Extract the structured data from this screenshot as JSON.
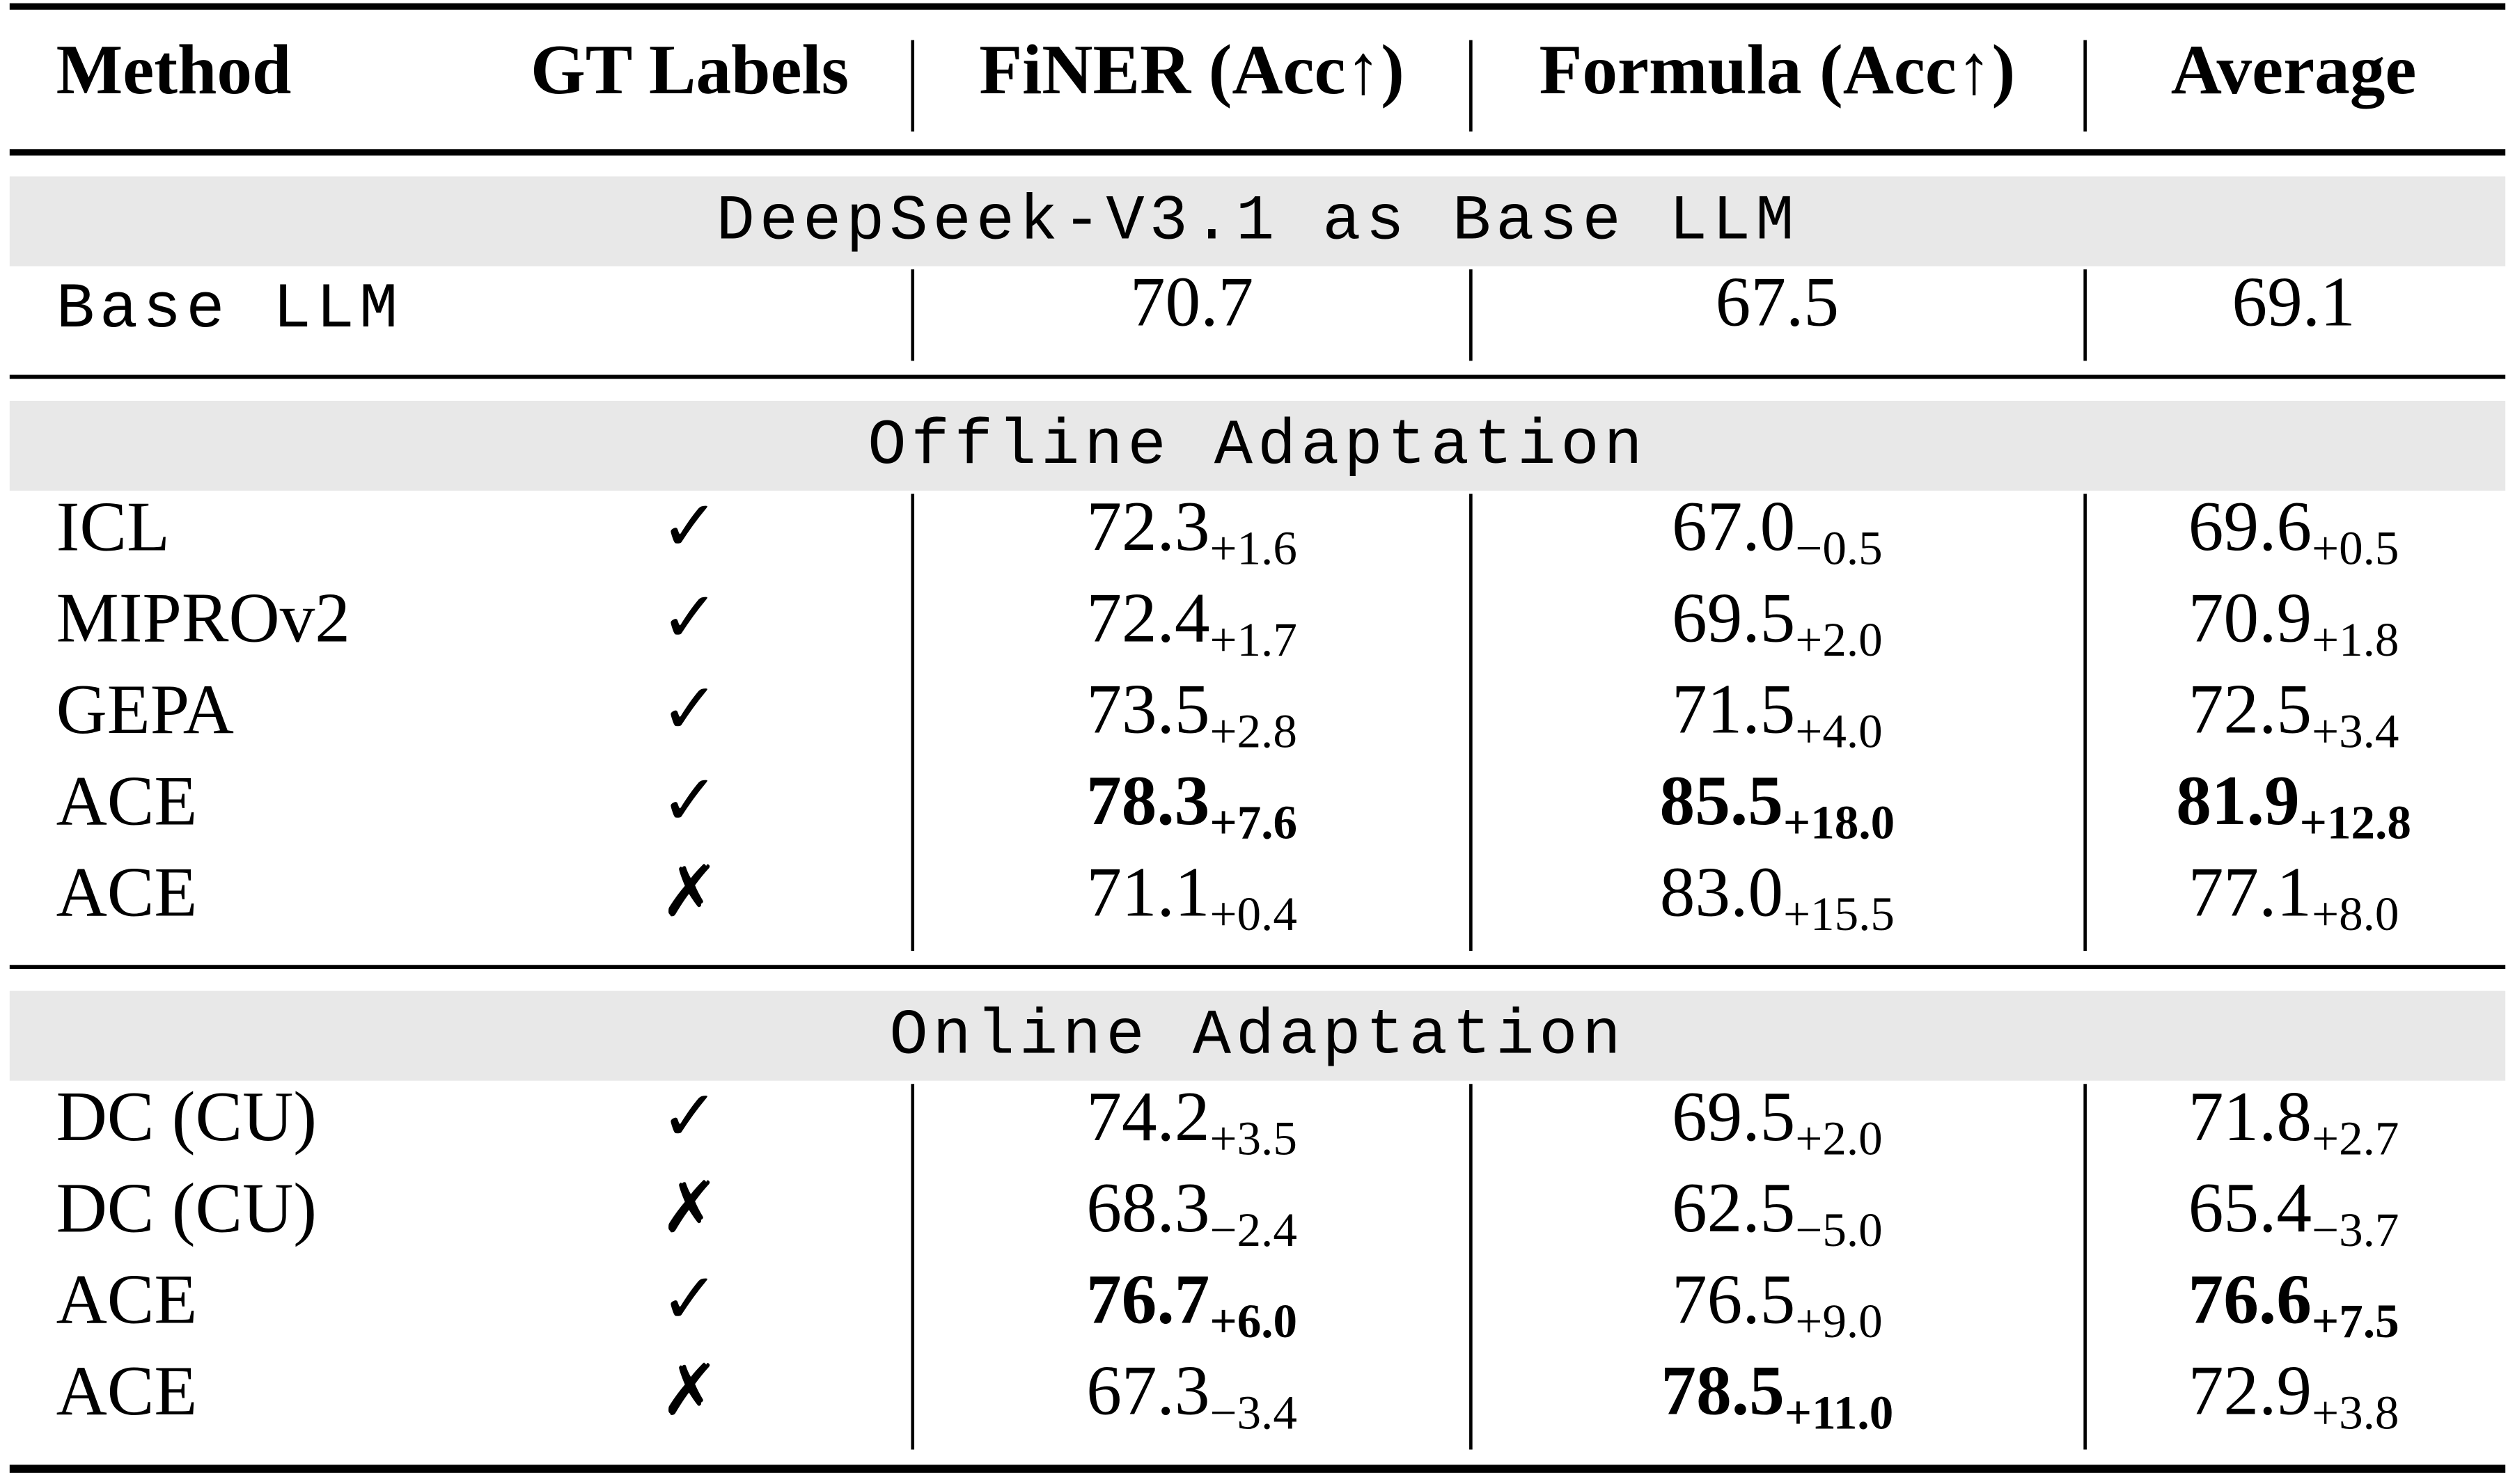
{
  "header": [
    "Method",
    "GT Labels",
    "FiNER (Acc↑)",
    "Formula (Acc↑)",
    "Average"
  ],
  "sections": [
    {
      "title": "DeepSeek-V3.1 as Base LLM",
      "rows": [
        {
          "method": "Base LLM",
          "monospace": true,
          "cells": [
            {
              "value": "70.7",
              "bold": false
            },
            {
              "value": "67.5",
              "bold": false
            },
            {
              "value": "69.1",
              "bold": false
            }
          ]
        }
      ]
    },
    {
      "title": "Offline Adaptation",
      "rows": [
        {
          "method": "ICL",
          "gt": "✓",
          "cells": [
            {
              "value": "72.3",
              "delta": "+1.6",
              "bold": false
            },
            {
              "value": "67.0",
              "delta": "−0.5",
              "bold": false
            },
            {
              "value": "69.6",
              "delta": "+0.5",
              "bold": false
            }
          ]
        },
        {
          "method": "MIPROv2",
          "gt": "✓",
          "cells": [
            {
              "value": "72.4",
              "delta": "+1.7",
              "bold": false
            },
            {
              "value": "69.5",
              "delta": "+2.0",
              "bold": false
            },
            {
              "value": "70.9",
              "delta": "+1.8",
              "bold": false
            }
          ]
        },
        {
          "method": "GEPA",
          "gt": "✓",
          "cells": [
            {
              "value": "73.5",
              "delta": "+2.8",
              "bold": false
            },
            {
              "value": "71.5",
              "delta": "+4.0",
              "bold": false
            },
            {
              "value": "72.5",
              "delta": "+3.4",
              "bold": false
            }
          ]
        },
        {
          "method": "ACE",
          "gt": "✓",
          "cells": [
            {
              "value": "78.3",
              "delta": "+7.6",
              "bold": true
            },
            {
              "value": "85.5",
              "delta": "+18.0",
              "bold": true
            },
            {
              "value": "81.9",
              "delta": "+12.8",
              "bold": true
            }
          ]
        },
        {
          "method": "ACE",
          "gt": "✗",
          "cells": [
            {
              "value": "71.1",
              "delta": "+0.4",
              "bold": false
            },
            {
              "value": "83.0",
              "delta": "+15.5",
              "bold": false
            },
            {
              "value": "77.1",
              "delta": "+8.0",
              "bold": false
            }
          ]
        }
      ]
    },
    {
      "title": "Online Adaptation",
      "rows": [
        {
          "method": "DC (CU)",
          "gt": "✓",
          "cells": [
            {
              "value": "74.2",
              "delta": "+3.5",
              "bold": false
            },
            {
              "value": "69.5",
              "delta": "+2.0",
              "bold": false
            },
            {
              "value": "71.8",
              "delta": "+2.7",
              "bold": false
            }
          ]
        },
        {
          "method": "DC (CU)",
          "gt": "✗",
          "cells": [
            {
              "value": "68.3",
              "delta": "−2.4",
              "bold": false
            },
            {
              "value": "62.5",
              "delta": "−5.0",
              "bold": false
            },
            {
              "value": "65.4",
              "delta": "−3.7",
              "bold": false
            }
          ]
        },
        {
          "method": "ACE",
          "gt": "✓",
          "cells": [
            {
              "value": "76.7",
              "delta": "+6.0",
              "bold": true
            },
            {
              "value": "76.5",
              "delta": "+9.0",
              "bold": false
            },
            {
              "value": "76.6",
              "delta": "+7.5",
              "bold": true
            }
          ]
        },
        {
          "method": "ACE",
          "gt": "✗",
          "cells": [
            {
              "value": "67.3",
              "delta": "−3.4",
              "bold": false
            },
            {
              "value": "78.5",
              "delta": "+11.0",
              "bold": true
            },
            {
              "value": "72.9",
              "delta": "+3.8",
              "bold": false
            }
          ]
        }
      ]
    }
  ]
}
